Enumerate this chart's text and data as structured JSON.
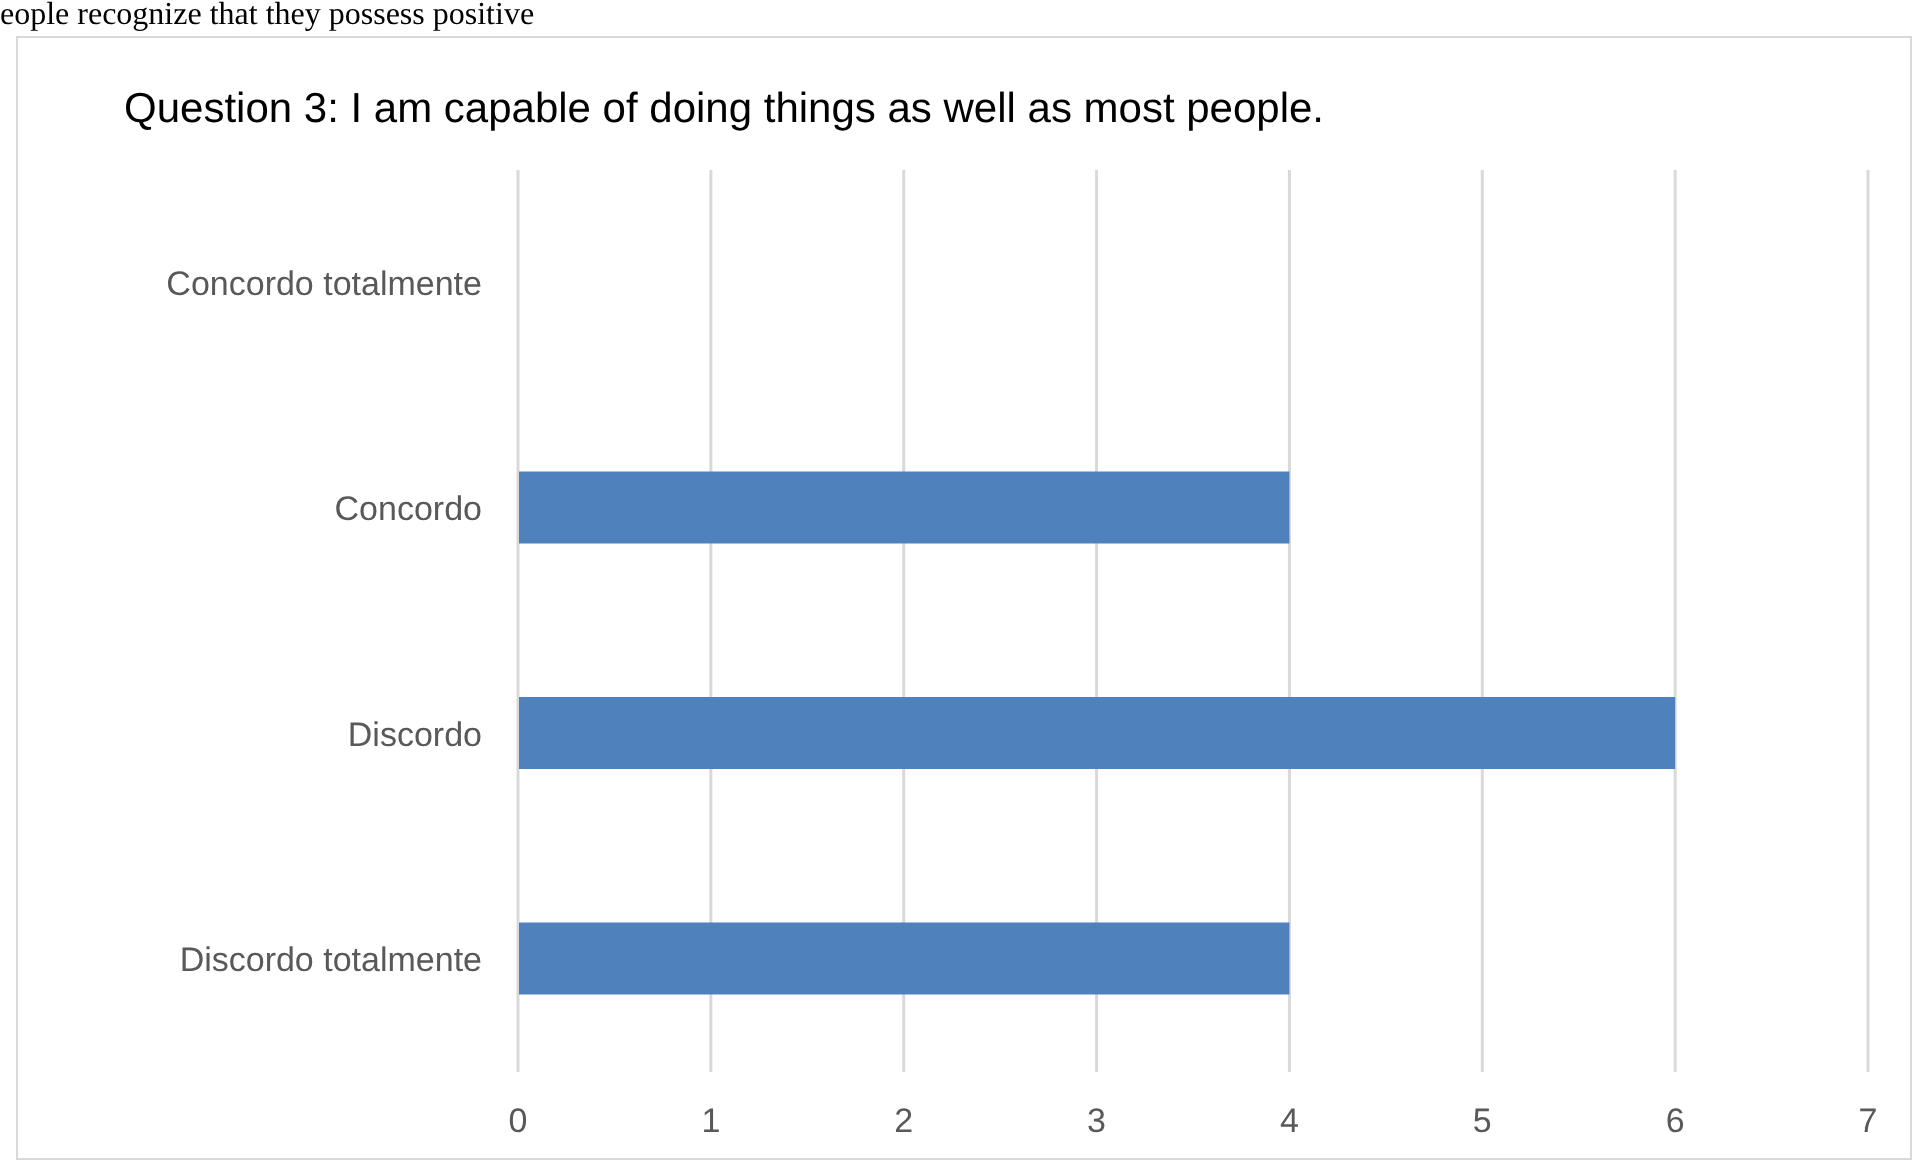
{
  "chart_data": {
    "type": "bar",
    "orientation": "horizontal",
    "title": "Question 3: I am capable of doing things as well as most people.",
    "annotations": [
      "eople recognize that they possess positive"
    ],
    "categories": [
      "Concordo totalmente",
      "Concordo",
      "Discordo",
      "Discordo totalmente"
    ],
    "values": [
      0,
      4,
      6,
      4
    ],
    "color": "#4f81bd",
    "xlim": [
      0,
      7
    ],
    "xticks": [
      0,
      1,
      2,
      3,
      4,
      5,
      6,
      7
    ],
    "grid": "x"
  }
}
